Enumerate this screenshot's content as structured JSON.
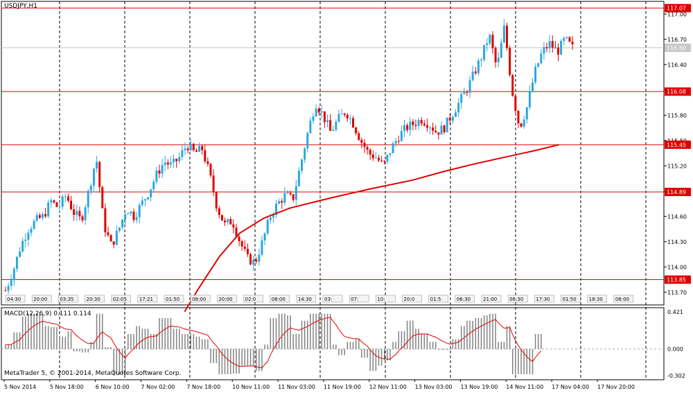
{
  "symbol_title": "USDJPY,H1",
  "macd_title": "MACD(12,26,9) 0.111 0.114",
  "copyright": "MetaTrader 5, © 2001-2014, MetaQuotes Software Corp.",
  "chart_data": {
    "type": "candlestick",
    "y_ticks": [
      "117.00",
      "116.70",
      "116.40",
      "116.10",
      "115.80",
      "115.50",
      "115.20",
      "114.90",
      "114.60",
      "114.30",
      "114.00",
      "113.70"
    ],
    "ylim": [
      113.55,
      117.15
    ],
    "hlines": [
      {
        "value": 117.07,
        "label": "117.07"
      },
      {
        "value": 116.08,
        "label": "116.08"
      },
      {
        "value": 115.45,
        "label": "115.45"
      },
      {
        "value": 114.89,
        "label": "114.89"
      },
      {
        "value": 113.85,
        "label": "113.85"
      }
    ],
    "current_price": {
      "value": 116.6,
      "label": "116.60"
    },
    "x_labels": [
      "5 Nov 2014",
      "5 Nov 18:00",
      "6 Nov 10:00",
      "7 Nov 02:00",
      "7 Nov 18:00",
      "10 Nov 11:00",
      "11 Nov 03:00",
      "11 Nov 19:00",
      "12 Nov 11:00",
      "13 Nov 03:00",
      "13 Nov 19:00",
      "14 Nov 11:00",
      "17 Nov 04:00",
      "17 Nov 20:00"
    ],
    "event_labels": [
      "04:30",
      "20:00",
      "03:35",
      "20:30",
      "02:05",
      "17:21",
      "01:50",
      "08:00",
      "20:00",
      "02:0",
      "08:00",
      "14:30",
      "03:",
      "07:",
      "10:",
      "20:0",
      "01:5",
      "06:30",
      "21:00",
      "06:30",
      "17:30",
      "01:50",
      "18:30",
      "08:00"
    ],
    "close_path": [
      113.72,
      113.95,
      114.25,
      114.45,
      114.55,
      114.6,
      114.78,
      114.7,
      114.85,
      114.65,
      114.55,
      114.9,
      115.3,
      114.5,
      114.25,
      114.45,
      114.7,
      114.6,
      114.75,
      114.9,
      115.1,
      115.25,
      115.2,
      115.3,
      115.45,
      115.35,
      115.4,
      115.1,
      114.7,
      114.5,
      114.55,
      114.3,
      114.1,
      114.05,
      114.3,
      114.6,
      114.75,
      114.85,
      114.8,
      115.2,
      115.6,
      115.95,
      115.8,
      115.6,
      115.75,
      115.85,
      115.7,
      115.5,
      115.35,
      115.3,
      115.2,
      115.4,
      115.55,
      115.65,
      115.7,
      115.75,
      115.7,
      115.6,
      115.65,
      115.8,
      115.95,
      116.1,
      116.3,
      116.5,
      116.75,
      116.35,
      116.85,
      116.1,
      115.65,
      115.9,
      116.3,
      116.55,
      116.65,
      116.55,
      116.7,
      116.6
    ],
    "ma_path": [
      [
        88,
        113.47
      ],
      [
        95,
        113.75
      ],
      [
        105,
        114.12
      ],
      [
        115,
        114.4
      ],
      [
        127,
        114.58
      ],
      [
        140,
        114.7
      ],
      [
        160,
        114.82
      ],
      [
        180,
        114.93
      ],
      [
        200,
        115.03
      ],
      [
        215,
        115.13
      ],
      [
        230,
        115.22
      ],
      [
        245,
        115.3
      ],
      [
        260,
        115.38
      ],
      [
        272,
        115.45
      ]
    ],
    "macd_axis": [
      "0.421",
      "0.000",
      "-0.302"
    ],
    "macd_ylim": [
      -0.302,
      0.421
    ]
  },
  "colors": {
    "bull": "#2aa7e0",
    "bear": "#e00000",
    "level": "#e00000",
    "price_line": "#c0c0c0",
    "hist": "#808080",
    "signal": "#e00000"
  }
}
